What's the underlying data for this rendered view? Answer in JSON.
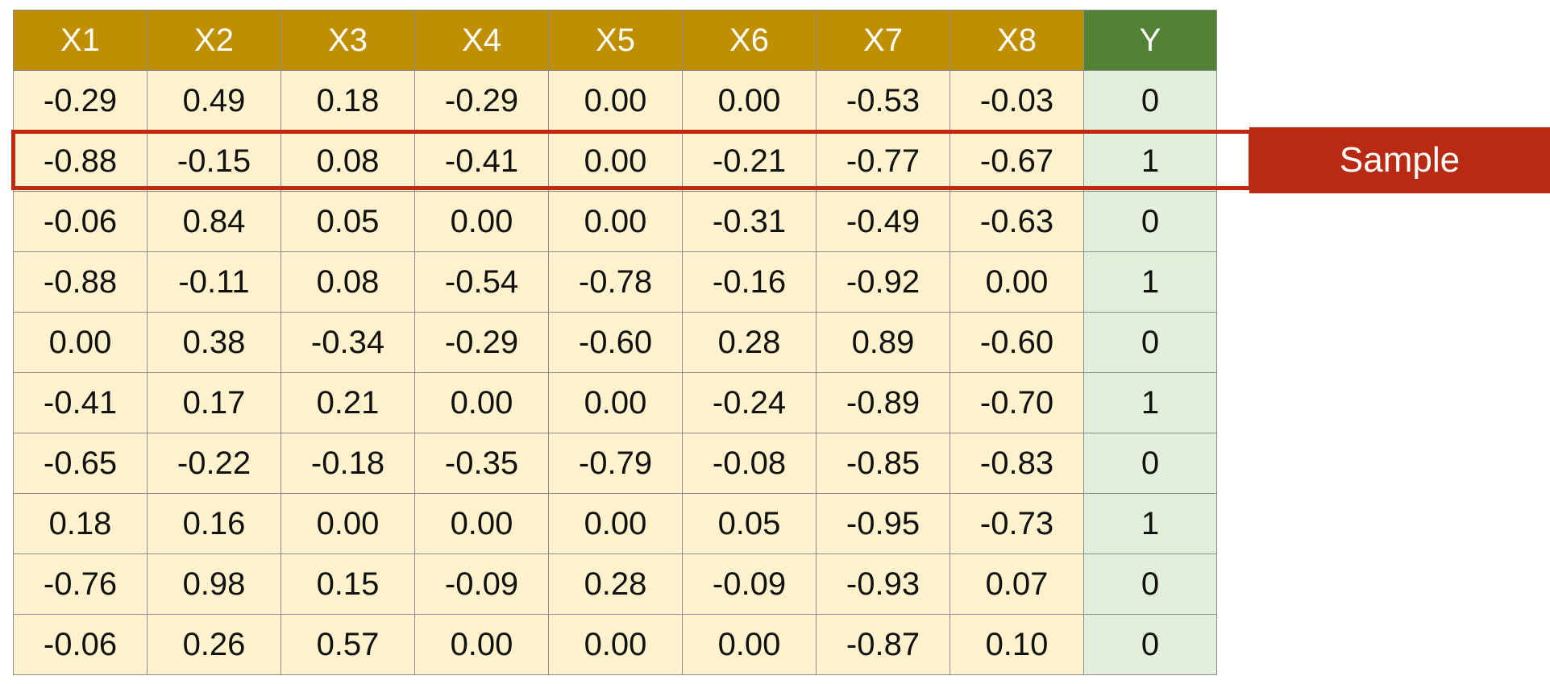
{
  "table": {
    "headers": [
      "X1",
      "X2",
      "X3",
      "X4",
      "X5",
      "X6",
      "X7",
      "X8",
      "Y"
    ],
    "rows": [
      [
        "-0.29",
        "0.49",
        "0.18",
        "-0.29",
        "0.00",
        "0.00",
        "-0.53",
        "-0.03",
        "0"
      ],
      [
        "-0.88",
        "-0.15",
        "0.08",
        "-0.41",
        "0.00",
        "-0.21",
        "-0.77",
        "-0.67",
        "1"
      ],
      [
        "-0.06",
        "0.84",
        "0.05",
        "0.00",
        "0.00",
        "-0.31",
        "-0.49",
        "-0.63",
        "0"
      ],
      [
        "-0.88",
        "-0.11",
        "0.08",
        "-0.54",
        "-0.78",
        "-0.16",
        "-0.92",
        "0.00",
        "1"
      ],
      [
        "0.00",
        "0.38",
        "-0.34",
        "-0.29",
        "-0.60",
        "0.28",
        "0.89",
        "-0.60",
        "0"
      ],
      [
        "-0.41",
        "0.17",
        "0.21",
        "0.00",
        "0.00",
        "-0.24",
        "-0.89",
        "-0.70",
        "1"
      ],
      [
        "-0.65",
        "-0.22",
        "-0.18",
        "-0.35",
        "-0.79",
        "-0.08",
        "-0.85",
        "-0.83",
        "0"
      ],
      [
        "0.18",
        "0.16",
        "0.00",
        "0.00",
        "0.00",
        "0.05",
        "-0.95",
        "-0.73",
        "1"
      ],
      [
        "-0.76",
        "0.98",
        "0.15",
        "-0.09",
        "0.28",
        "-0.09",
        "-0.93",
        "0.07",
        "0"
      ],
      [
        "-0.06",
        "0.26",
        "0.57",
        "0.00",
        "0.00",
        "0.00",
        "-0.87",
        "0.10",
        "0"
      ]
    ],
    "highlighted_row": 2
  },
  "annotation": {
    "label": "Sample"
  },
  "colors": {
    "header_feature": "#bf8f00",
    "header_target": "#548235",
    "cell_feature": "#fff2cc",
    "cell_target": "#e2efda",
    "highlight": "#c0280f"
  }
}
